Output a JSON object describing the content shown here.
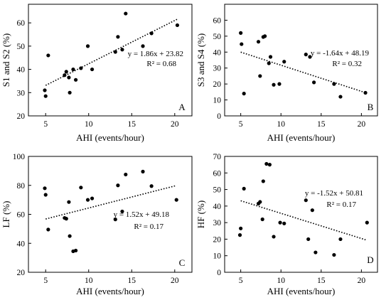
{
  "chart_data": [
    {
      "type": "scatter",
      "panel": "A",
      "xlabel": "AHI (events/hour)",
      "ylabel": "S1 and S2 (%)",
      "xlim": [
        3,
        22
      ],
      "ylim": [
        20,
        68
      ],
      "xticks": [
        5,
        10,
        15,
        20
      ],
      "yticks": [
        20,
        30,
        40,
        50,
        60
      ],
      "equation": "y = 1.86x + 23.82",
      "r2": "R² = 0.68",
      "trend": {
        "slope": 1.86,
        "intercept": 23.82,
        "x": [
          5,
          20.3
        ]
      },
      "points": [
        [
          4.9,
          31.0
        ],
        [
          5.0,
          28.5
        ],
        [
          5.3,
          46.0
        ],
        [
          7.2,
          37.5
        ],
        [
          7.4,
          39.0
        ],
        [
          7.7,
          36.5
        ],
        [
          7.8,
          30.0
        ],
        [
          8.2,
          40.0
        ],
        [
          8.5,
          35.5
        ],
        [
          9.1,
          40.5
        ],
        [
          9.9,
          50.0
        ],
        [
          10.4,
          40.0
        ],
        [
          13.1,
          47.5
        ],
        [
          13.4,
          54.0
        ],
        [
          13.9,
          48.5
        ],
        [
          14.3,
          64.0
        ],
        [
          16.3,
          50.0
        ],
        [
          17.3,
          55.5
        ],
        [
          20.3,
          59.0
        ]
      ]
    },
    {
      "type": "scatter",
      "panel": "B",
      "xlabel": "AHI (events/hour)",
      "ylabel": "S3 and S4 (%)",
      "xlim": [
        3,
        22
      ],
      "ylim": [
        0,
        70
      ],
      "xticks": [
        5,
        10,
        15,
        20
      ],
      "yticks": [
        0,
        10,
        20,
        30,
        40,
        50,
        60
      ],
      "equation": "y = -1.64x + 48.19",
      "r2": "R² = 0.32",
      "trend": {
        "slope": -1.64,
        "intercept": 48.19,
        "x": [
          5,
          20.5
        ]
      },
      "points": [
        [
          5.0,
          52.0
        ],
        [
          5.1,
          45.0
        ],
        [
          5.4,
          14.0
        ],
        [
          7.2,
          46.5
        ],
        [
          7.4,
          25.0
        ],
        [
          7.8,
          49.5
        ],
        [
          8.0,
          50.0
        ],
        [
          8.5,
          33.0
        ],
        [
          8.7,
          37.0
        ],
        [
          9.1,
          19.5
        ],
        [
          9.8,
          20.0
        ],
        [
          10.4,
          34.0
        ],
        [
          13.1,
          38.5
        ],
        [
          13.6,
          37.0
        ],
        [
          14.1,
          21.0
        ],
        [
          16.6,
          20.0
        ],
        [
          17.4,
          12.0
        ],
        [
          20.5,
          14.5
        ]
      ]
    },
    {
      "type": "scatter",
      "panel": "C",
      "xlabel": "AHI (events/hour)",
      "ylabel": "LF (%)",
      "xlim": [
        3,
        22
      ],
      "ylim": [
        20,
        100
      ],
      "xticks": [
        5,
        10,
        15,
        20
      ],
      "yticks": [
        20,
        40,
        60,
        80,
        100
      ],
      "equation": "y = 1.52x + 49.18",
      "r2": "R² = 0.17",
      "trend": {
        "slope": 1.52,
        "intercept": 49.18,
        "x": [
          5,
          20.2
        ]
      },
      "points": [
        [
          4.9,
          78.0
        ],
        [
          5.0,
          73.5
        ],
        [
          5.3,
          49.5
        ],
        [
          7.2,
          57.5
        ],
        [
          7.4,
          57.0
        ],
        [
          7.7,
          68.5
        ],
        [
          7.8,
          45.0
        ],
        [
          8.2,
          34.5
        ],
        [
          8.5,
          35.0
        ],
        [
          9.1,
          78.5
        ],
        [
          9.9,
          70.0
        ],
        [
          10.4,
          71.0
        ],
        [
          13.1,
          56.5
        ],
        [
          13.4,
          80.0
        ],
        [
          13.9,
          62.0
        ],
        [
          14.3,
          87.5
        ],
        [
          16.3,
          89.5
        ],
        [
          17.3,
          79.5
        ],
        [
          20.2,
          70.0
        ]
      ]
    },
    {
      "type": "scatter",
      "panel": "D",
      "xlabel": "AHI (events/hour)",
      "ylabel": "HF (%)",
      "xlim": [
        3,
        22
      ],
      "ylim": [
        0,
        70
      ],
      "xticks": [
        5,
        10,
        15,
        20
      ],
      "yticks": [
        0,
        10,
        20,
        30,
        40,
        50,
        60,
        70
      ],
      "equation": "y = -1.52x + 50.81",
      "r2": "R² = 0.17",
      "trend": {
        "slope": -1.52,
        "intercept": 50.81,
        "x": [
          5,
          20.7
        ]
      },
      "points": [
        [
          4.9,
          22.5
        ],
        [
          5.0,
          26.5
        ],
        [
          5.4,
          50.5
        ],
        [
          7.2,
          41.5
        ],
        [
          7.4,
          42.5
        ],
        [
          7.7,
          32.0
        ],
        [
          7.8,
          55.0
        ],
        [
          8.2,
          65.5
        ],
        [
          8.6,
          65.0
        ],
        [
          9.1,
          21.5
        ],
        [
          9.9,
          30.0
        ],
        [
          10.4,
          29.5
        ],
        [
          13.1,
          43.5
        ],
        [
          13.4,
          20.0
        ],
        [
          13.9,
          37.5
        ],
        [
          14.3,
          12.0
        ],
        [
          16.6,
          10.5
        ],
        [
          17.4,
          20.0
        ],
        [
          20.7,
          30.0
        ]
      ]
    }
  ]
}
